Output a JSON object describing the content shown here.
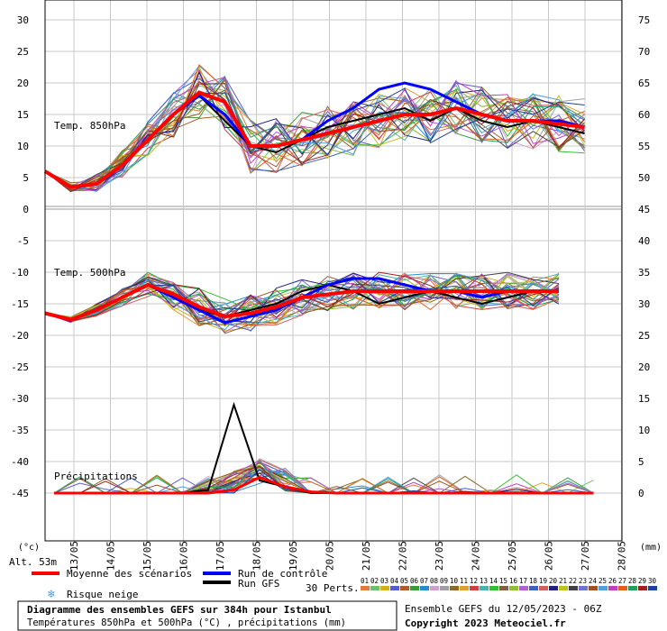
{
  "chart_data": {
    "type": "line",
    "x_dates": [
      "13/05",
      "14/05",
      "15/05",
      "16/05",
      "17/05",
      "18/05",
      "19/05",
      "20/05",
      "21/05",
      "22/05",
      "23/05",
      "24/05",
      "25/05",
      "26/05",
      "27/05",
      "28/05"
    ],
    "left_axis": {
      "unit": "(°c)",
      "ticks": [
        30,
        25,
        20,
        15,
        10,
        5,
        0,
        -5,
        -10,
        -15,
        -20,
        -25,
        -30,
        -35,
        -40,
        -45
      ]
    },
    "right_axis": {
      "unit": "(mm)",
      "ticks": [
        75,
        70,
        65,
        60,
        55,
        50,
        45,
        40,
        35,
        30,
        25,
        20,
        15,
        10,
        5,
        0
      ]
    },
    "panels": {
      "t850": "Temp. 850hPa",
      "t500": "Temp. 500hPa",
      "precip": "Précipitations"
    },
    "altitude": "Alt. 53m",
    "series": [
      {
        "name": "Moyenne des scénarios",
        "t850": [
          6,
          3.5,
          4,
          7,
          11,
          15,
          18.5,
          17,
          10,
          10,
          11,
          12,
          13,
          14,
          15,
          15,
          16,
          15,
          14,
          14,
          13.5,
          13
        ],
        "t500": [
          -16.5,
          -17.5,
          -16,
          -14,
          -12,
          -13.5,
          -15.5,
          -17,
          -16.5,
          -15.5,
          -14,
          -13.5,
          -13,
          -13,
          -13,
          -13,
          -13,
          -13,
          -13,
          -13,
          -13
        ],
        "precip": [
          0,
          0,
          0,
          0,
          0,
          0,
          0,
          0.5,
          2.5,
          1,
          0.2,
          0,
          0,
          0,
          0,
          0,
          0,
          0,
          0,
          0,
          0,
          0
        ]
      },
      {
        "name": "Run de contrôle",
        "t850": [
          6,
          3.5,
          4,
          7,
          11,
          15,
          18,
          15,
          10,
          10,
          11,
          14,
          16,
          19,
          20,
          19,
          17,
          15,
          14,
          14,
          14,
          13
        ],
        "t500": [
          -16.5,
          -17.5,
          -16,
          -14,
          -12,
          -14,
          -16,
          -18,
          -17,
          -16,
          -14,
          -12,
          -11,
          -11,
          -12,
          -13,
          -13,
          -14,
          -13,
          -13,
          -13
        ]
      },
      {
        "name": "Run GFS",
        "t850": [
          6,
          3.5,
          4,
          7,
          11,
          15,
          18,
          14,
          10,
          9,
          11,
          13,
          14,
          15,
          16,
          14,
          16,
          14,
          13,
          14,
          13,
          12
        ],
        "t500": [
          -16.5,
          -17.5,
          -16,
          -14,
          -12,
          -14,
          -16,
          -17,
          -16,
          -15,
          -13,
          -12,
          -13,
          -15,
          -14,
          -13,
          -14,
          -15,
          -14,
          -13,
          -13
        ],
        "precip": [
          0,
          0,
          0,
          0,
          0,
          0,
          0.5,
          14,
          2,
          1,
          0,
          0,
          0,
          0,
          0,
          0,
          0,
          0,
          0,
          0,
          0,
          0
        ]
      }
    ]
  },
  "legend": {
    "mean_label": "Moyenne des scénarios",
    "mean_color": "#ff0000",
    "control_label": "Run de contrôle",
    "control_color": "#0000ff",
    "gfs_label": "Run GFS",
    "gfs_color": "#000000",
    "snow_label": "Risque neige",
    "snow_icon": "snowflake-icon",
    "perts_label": "30 Perts.",
    "perts_numbers": [
      "01",
      "02",
      "03",
      "04",
      "05",
      "06",
      "07",
      "08",
      "09",
      "10",
      "11",
      "12",
      "13",
      "14",
      "15",
      "16",
      "17",
      "18",
      "19",
      "20",
      "21",
      "22",
      "23",
      "24",
      "25",
      "26",
      "27",
      "28",
      "29",
      "30"
    ],
    "perts_colors": [
      "#e07b3a",
      "#6fbf6f",
      "#d4b020",
      "#5a5ad0",
      "#b05a2a",
      "#3a9a3a",
      "#2a8ad0",
      "#d0a0d0",
      "#a0a0a0",
      "#8a6a2a",
      "#e0a030",
      "#d04040",
      "#4ab0b0",
      "#30c030",
      "#806040",
      "#90c030",
      "#b060d0",
      "#4060c0",
      "#d06060",
      "#202080",
      "#c0c020",
      "#404040",
      "#7070d0",
      "#a05020",
      "#50a0e0",
      "#c040c0",
      "#e06020",
      "#20a060",
      "#a02020",
      "#2040a0"
    ]
  },
  "footer": {
    "title": "Diagramme des ensembles GEFS sur 384h pour Istanbul",
    "subtitle": "Températures 850hPa et 500hPa (°C) , précipitations (mm)",
    "ensemble": "Ensemble GEFS du 12/05/2023 - 06Z",
    "copyright": "Copyright 2023 Meteociel.fr"
  }
}
